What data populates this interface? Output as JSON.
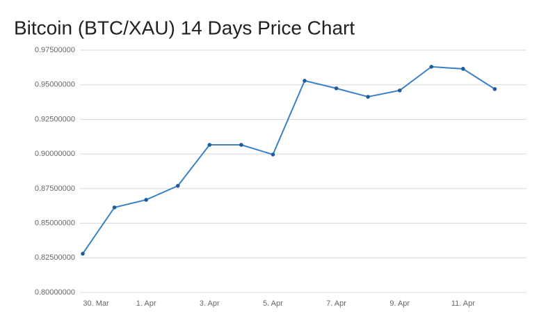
{
  "chart_data": {
    "type": "line",
    "title": "Bitcoin (BTC/XAU) 14 Days Price Chart",
    "categories": [
      "30. Mar",
      null,
      "1. Apr",
      null,
      "3. Apr",
      null,
      "5. Apr",
      null,
      "7. Apr",
      null,
      "9. Apr",
      null,
      "11. Apr",
      null,
      null
    ],
    "series": [
      {
        "color": "#3a80c8",
        "values": [
          0.828,
          0.8614,
          0.8669,
          0.877,
          0.9066,
          0.9066,
          0.8996,
          0.9529,
          0.9474,
          0.9413,
          0.9459,
          0.963,
          0.9615,
          0.9469,
          null
        ]
      }
    ],
    "ylim": [
      0.8,
      0.975
    ],
    "yticks": [
      {
        "value": 0.8,
        "label": "0.80000000"
      },
      {
        "value": 0.825,
        "label": "0.82500000"
      },
      {
        "value": 0.85,
        "label": "0.85000000"
      },
      {
        "value": 0.875,
        "label": "0.87500000"
      },
      {
        "value": 0.9,
        "label": "0.90000000"
      },
      {
        "value": 0.925,
        "label": "0.92500000"
      },
      {
        "value": 0.95,
        "label": "0.95000000"
      },
      {
        "value": 0.975,
        "label": "0.97500000"
      }
    ],
    "grid": true
  }
}
